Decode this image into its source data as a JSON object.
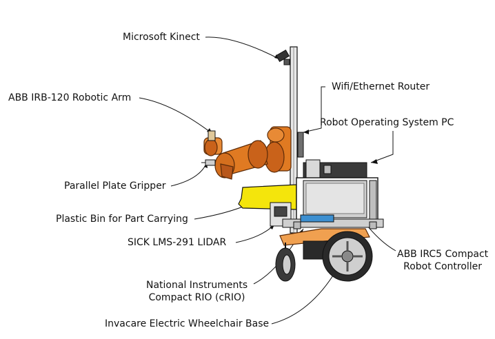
{
  "diagram": {
    "labels": {
      "kinect": "Microsoft Kinect",
      "router": "Wifi/Ethernet Router",
      "robot_arm": "ABB IRB-120 Robotic Arm",
      "ros_pc": "Robot Operating System PC",
      "gripper": "Parallel Plate Gripper",
      "plastic_bin": "Plastic Bin for Part Carrying",
      "lidar": "SICK LMS-291 LIDAR",
      "controller": "ABB IRC5 Compact\nRobot Controller",
      "crio": "National Instruments\nCompact RIO (cRIO)",
      "wheelchair_base": "Invacare Electric Wheelchair Base"
    },
    "colors": {
      "orange": "#e07a22",
      "orange_dark": "#9c4a10",
      "bin_yellow": "#f4e50c",
      "metal": "#d9d9d9",
      "frame": "#8c8c8c",
      "dark": "#2a2a2a",
      "line": "#111111"
    }
  }
}
